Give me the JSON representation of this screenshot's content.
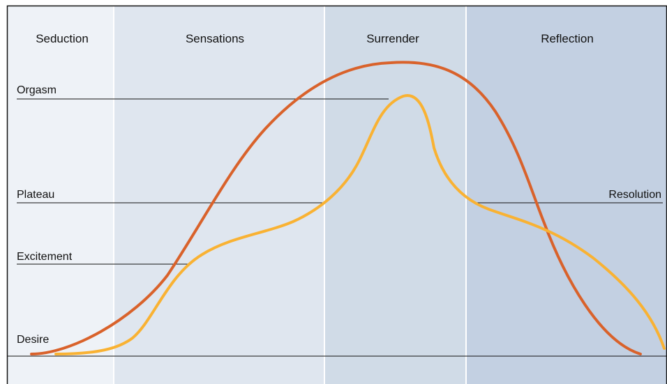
{
  "phases": [
    "Seduction",
    "Sensations",
    "Surrender",
    "Reflection"
  ],
  "levels": {
    "orgasm": "Orgasm",
    "plateau": "Plateau",
    "excitement": "Excitement",
    "desire": "Desire",
    "resolution": "Resolution"
  }
}
